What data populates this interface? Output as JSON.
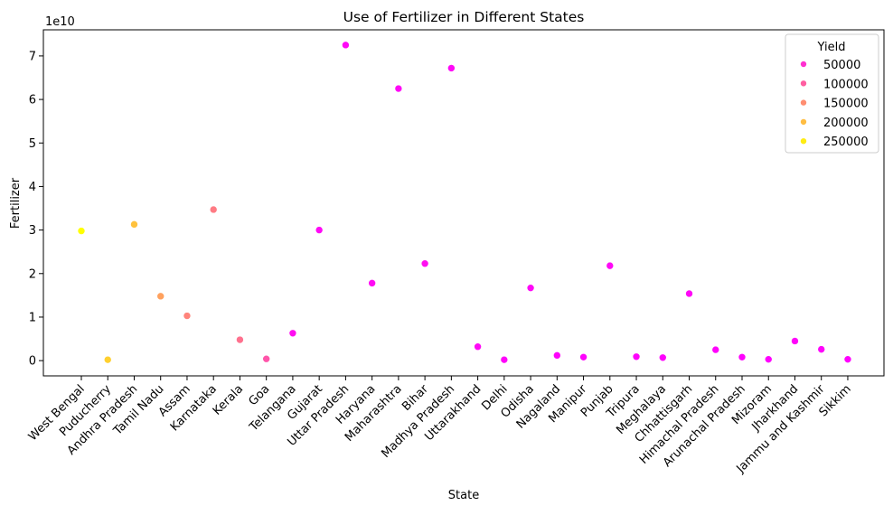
{
  "chart_data": {
    "type": "scatter",
    "title": "Use of Fertilizer in Different States",
    "xlabel": "State",
    "ylabel": "Fertilizer",
    "y_offset_label": "1e10",
    "y_scale": 10000000000,
    "ylim": [
      -0.35,
      7.6
    ],
    "yticks": [
      0,
      1,
      2,
      3,
      4,
      5,
      6,
      7
    ],
    "ytick_labels": [
      "0",
      "1",
      "2",
      "3",
      "4",
      "5",
      "6",
      "7"
    ],
    "grid": false,
    "legend": {
      "title": "Yield",
      "placement": "top-right",
      "entries": [
        {
          "label": "50000",
          "yield": 50000
        },
        {
          "label": "100000",
          "yield": 100000
        },
        {
          "label": "150000",
          "yield": 150000
        },
        {
          "label": "200000",
          "yield": 200000
        },
        {
          "label": "250000",
          "yield": 250000
        }
      ]
    },
    "color_scale": {
      "name": "spring",
      "min": 0,
      "max": 270000
    },
    "categories": [
      "West Bengal",
      "Puducherry",
      "Andhra Pradesh",
      "Tamil Nadu",
      "Assam",
      "Karnataka",
      "Kerala",
      "Goa",
      "Telangana",
      "Gujarat",
      "Uttar Pradesh",
      "Haryana",
      "Maharashtra",
      "Bihar",
      "Madhya Pradesh",
      "Uttarakhand",
      "Delhi",
      "Odisha",
      "Nagaland",
      "Manipur",
      "Punjab",
      "Tripura",
      "Meghalaya",
      "Chhattisgarh",
      "Himachal Pradesh",
      "Arunachal Pradesh",
      "Mizoram",
      "Jharkhand",
      "Jammu and Kashmir",
      "Sikkim"
    ],
    "values": [
      2.98,
      0.02,
      3.13,
      1.48,
      1.03,
      3.47,
      0.48,
      0.04,
      0.63,
      3.0,
      7.25,
      1.78,
      6.25,
      2.23,
      6.72,
      0.32,
      0.02,
      1.67,
      0.12,
      0.08,
      2.18,
      0.09,
      0.07,
      1.54,
      0.25,
      0.08,
      0.03,
      0.45,
      0.26,
      0.03
    ],
    "yields": [
      270000,
      220000,
      205000,
      170000,
      140000,
      130000,
      120000,
      90000,
      15000,
      10000,
      8000,
      12000,
      10000,
      15000,
      8000,
      10000,
      5000,
      8000,
      3000,
      2000,
      10000,
      3000,
      2000,
      8000,
      3000,
      2000,
      1000,
      5000,
      4000,
      1000
    ]
  }
}
